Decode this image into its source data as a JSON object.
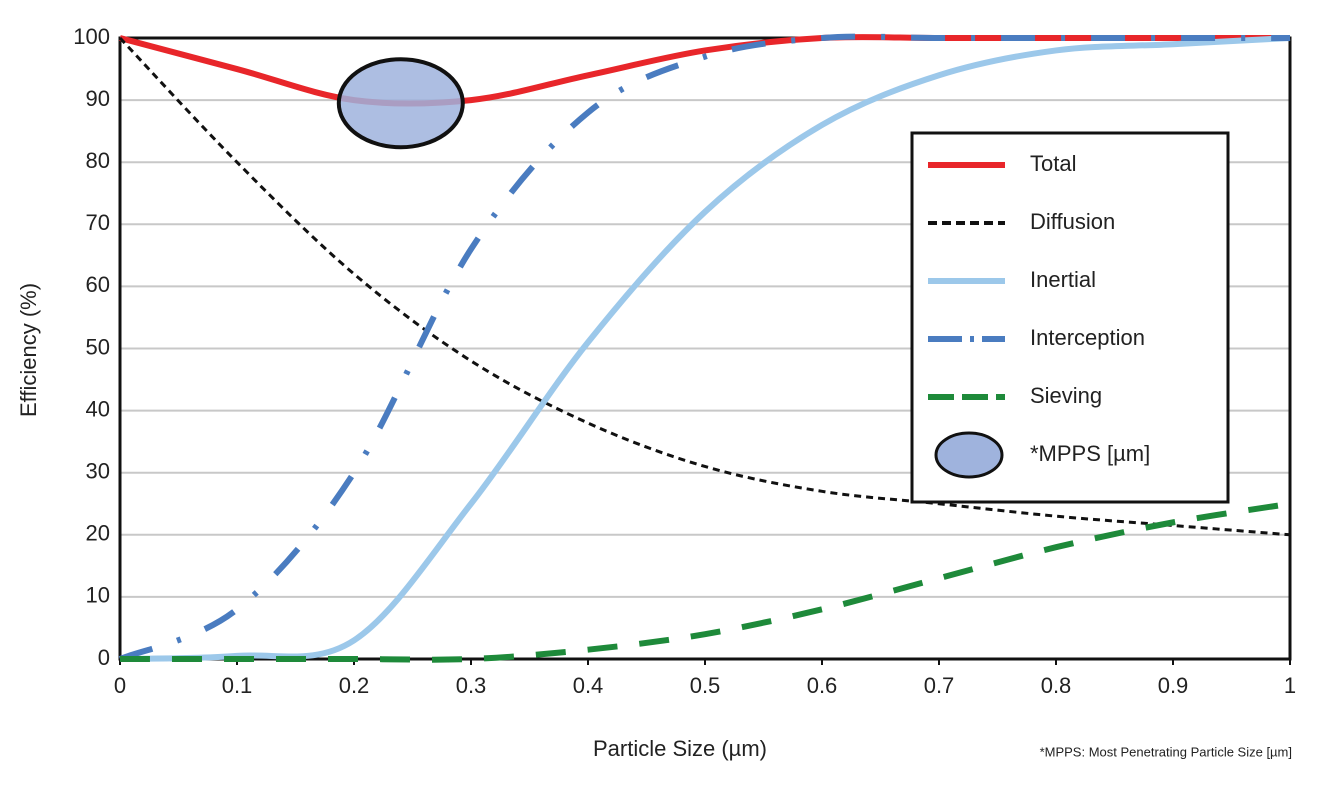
{
  "chart_data": {
    "type": "line",
    "xlabel": "Particle Size (µm)",
    "ylabel": "Efficiency (%)",
    "footnote": "*MPPS: Most Penetrating Particle Size [µm]",
    "x": [
      0,
      0.1,
      0.2,
      0.3,
      0.4,
      0.5,
      0.6,
      0.7,
      0.8,
      0.9,
      1
    ],
    "series": [
      {
        "name": "Total",
        "color": "#e8262a",
        "style": "solid",
        "values": [
          100,
          95,
          90,
          90,
          94,
          98,
          100,
          100,
          100,
          100,
          100
        ]
      },
      {
        "name": "Diffusion",
        "color": "#111111",
        "style": "dash",
        "values": [
          100,
          80,
          62,
          48,
          38,
          31,
          27,
          25,
          23,
          21.5,
          20
        ]
      },
      {
        "name": "Inertial",
        "color": "#9cc8ea",
        "style": "solid",
        "values": [
          0,
          0.5,
          3,
          25,
          51,
          72,
          86,
          94,
          98,
          99,
          100
        ]
      },
      {
        "name": "Interception",
        "color": "#4a7cc0",
        "style": "dashdot",
        "values": [
          0,
          8,
          30,
          66,
          88,
          97,
          100,
          100,
          100,
          100,
          100
        ]
      },
      {
        "name": "Sieving",
        "color": "#1e8a3a",
        "style": "longdash",
        "values": [
          0,
          0,
          0,
          0,
          1.5,
          4,
          8,
          13,
          18,
          22,
          25
        ]
      }
    ],
    "mpps": {
      "name": "*MPPS [µm]",
      "color": "#9fb3dd",
      "x": 0.24,
      "y": 89.5
    },
    "xlim": [
      0,
      1
    ],
    "ylim": [
      0,
      100
    ],
    "xticks": [
      0,
      0.1,
      0.2,
      0.3,
      0.4,
      0.5,
      0.6,
      0.7,
      0.8,
      0.9,
      1
    ],
    "yticks": [
      0,
      10,
      20,
      30,
      40,
      50,
      60,
      70,
      80,
      90,
      100
    ],
    "grid": true,
    "legend": "right"
  }
}
